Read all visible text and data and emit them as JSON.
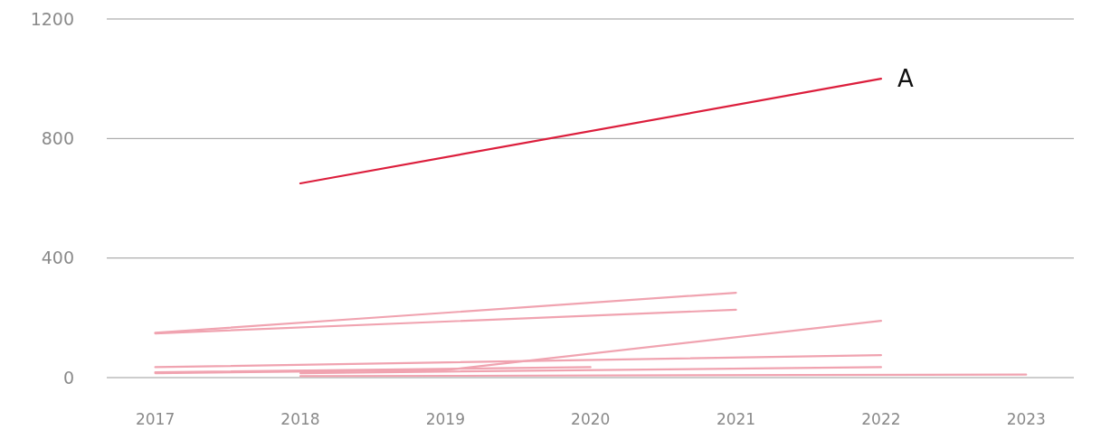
{
  "chart_data": {
    "type": "line",
    "xlim": [
      "2016-09",
      "2023-05"
    ],
    "xticks": [
      {
        "value": "2017",
        "label": "2017"
      },
      {
        "value": "2018",
        "label": "2018"
      },
      {
        "value": "2019",
        "label": "2019"
      },
      {
        "value": "2020",
        "label": "2020"
      },
      {
        "value": "2021",
        "label": "2021"
      },
      {
        "value": "2022",
        "label": "2022"
      },
      {
        "value": "2023",
        "label": "2023"
      }
    ],
    "ylim": [
      0,
      1200
    ],
    "yticks": [
      0,
      400,
      800,
      1200
    ],
    "grid": "y",
    "marker": "none",
    "line_style": "solid",
    "series": [
      {
        "color": "#f0a3b0",
        "x": [
          "2017",
          "2021"
        ],
        "values": [
          150,
          284
        ]
      },
      {
        "color": "#f0a3b0",
        "x": [
          "2017",
          "2021"
        ],
        "values": [
          148,
          227
        ]
      },
      {
        "color": "#f0a3b0",
        "x": [
          "2017",
          "2019",
          "2022"
        ],
        "values": [
          15,
          25,
          190
        ]
      },
      {
        "color": "#f0a3b0",
        "x": [
          "2017",
          "2022"
        ],
        "values": [
          35,
          75
        ]
      },
      {
        "color": "#f0a3b0",
        "x": [
          "2017",
          "2020"
        ],
        "values": [
          18,
          35
        ]
      },
      {
        "color": "#f0a3b0",
        "x": [
          "2018",
          "2022"
        ],
        "values": [
          15,
          35
        ]
      },
      {
        "color": "#f0a3b0",
        "x": [
          "2018",
          "2023"
        ],
        "values": [
          5,
          10
        ]
      },
      {
        "name": "A",
        "color": "#dc1e3c",
        "x": [
          "2018",
          "2022"
        ],
        "values": [
          650,
          1000
        ]
      }
    ]
  }
}
